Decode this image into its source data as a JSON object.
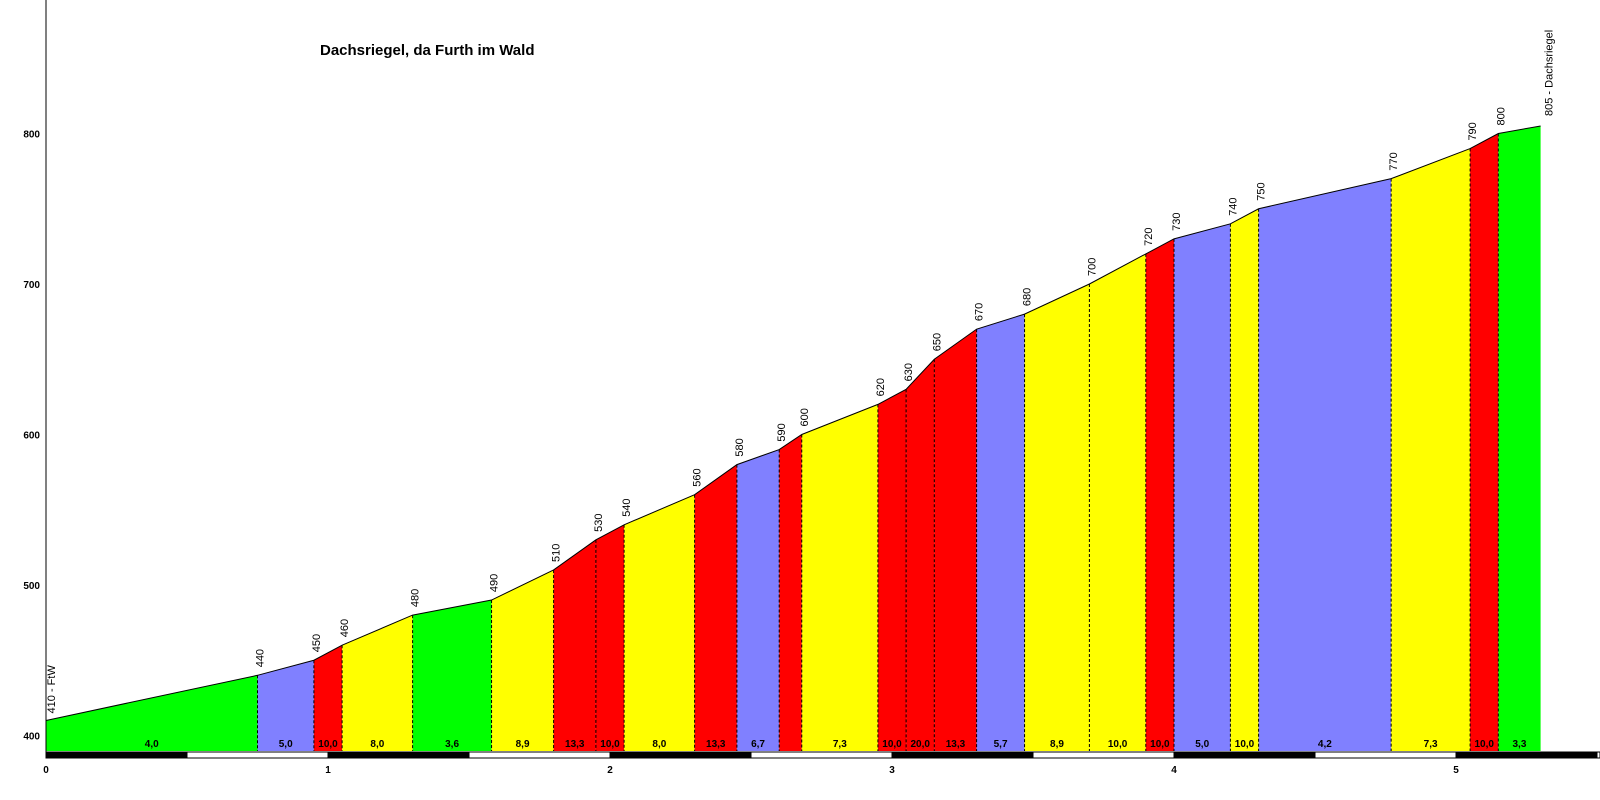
{
  "chart_data": {
    "type": "area",
    "title": "Dachsriegel, da Furth im Wald",
    "xlabel": "",
    "ylabel": "",
    "xlim": [
      0,
      5.67
    ],
    "ylim": [
      390,
      880
    ],
    "x_ticks": [
      "0",
      "1",
      "2",
      "3",
      "4",
      "5"
    ],
    "y_ticks": [
      "400",
      "500",
      "600",
      "700",
      "800"
    ],
    "start_label": "410 - FtW",
    "end_label": "805 - Dachsriegel",
    "points": [
      {
        "x": 0.0,
        "y": 410
      },
      {
        "x": 0.75,
        "y": 440,
        "label": "440"
      },
      {
        "x": 0.95,
        "y": 450,
        "label": "450"
      },
      {
        "x": 1.05,
        "y": 460,
        "label": "460"
      },
      {
        "x": 1.3,
        "y": 480,
        "label": "480"
      },
      {
        "x": 1.58,
        "y": 490,
        "label": "490"
      },
      {
        "x": 1.8,
        "y": 510,
        "label": "510"
      },
      {
        "x": 1.95,
        "y": 530,
        "label": "530"
      },
      {
        "x": 2.05,
        "y": 540,
        "label": "540"
      },
      {
        "x": 2.3,
        "y": 560,
        "label": "560"
      },
      {
        "x": 2.45,
        "y": 580,
        "label": "580"
      },
      {
        "x": 2.6,
        "y": 590,
        "label": "590"
      },
      {
        "x": 2.68,
        "y": 600,
        "label": "600"
      },
      {
        "x": 2.95,
        "y": 620,
        "label": "620"
      },
      {
        "x": 3.05,
        "y": 630,
        "label": "630"
      },
      {
        "x": 3.15,
        "y": 650,
        "label": "650"
      },
      {
        "x": 3.3,
        "y": 670,
        "label": "670"
      },
      {
        "x": 3.47,
        "y": 680,
        "label": "680"
      },
      {
        "x": 3.7,
        "y": 700,
        "label": "700"
      },
      {
        "x": 3.9,
        "y": 720,
        "label": "720"
      },
      {
        "x": 4.0,
        "y": 730,
        "label": "730"
      },
      {
        "x": 4.2,
        "y": 740,
        "label": "740"
      },
      {
        "x": 4.3,
        "y": 750,
        "label": "750"
      },
      {
        "x": 4.77,
        "y": 770,
        "label": "770"
      },
      {
        "x": 5.05,
        "y": 790,
        "label": "790"
      },
      {
        "x": 5.15,
        "y": 800,
        "label": "800"
      },
      {
        "x": 5.3,
        "y": 805
      }
    ],
    "segments": [
      {
        "grade": "4,0",
        "color": "#00ff00"
      },
      {
        "grade": "5,0",
        "color": "#8080ff"
      },
      {
        "grade": "10,0",
        "color": "#ff0000"
      },
      {
        "grade": "8,0",
        "color": "#ffff00"
      },
      {
        "grade": "3,6",
        "color": "#00ff00"
      },
      {
        "grade": "8,9",
        "color": "#ffff00"
      },
      {
        "grade": "13,3",
        "color": "#ff0000"
      },
      {
        "grade": "10,0",
        "color": "#ff0000"
      },
      {
        "grade": "8,0",
        "color": "#ffff00"
      },
      {
        "grade": "13,3",
        "color": "#ff0000"
      },
      {
        "grade": "6,7",
        "color": "#8080ff"
      },
      {
        "grade": "",
        "color": "#ff0000"
      },
      {
        "grade": "7,3",
        "color": "#ffff00"
      },
      {
        "grade": "10,0",
        "color": "#ff0000"
      },
      {
        "grade": "20,0",
        "color": "#ff0000"
      },
      {
        "grade": "13,3",
        "color": "#ff0000"
      },
      {
        "grade": "5,7",
        "color": "#8080ff"
      },
      {
        "grade": "8,9",
        "color": "#ffff00"
      },
      {
        "grade": "10,0",
        "color": "#ffff00"
      },
      {
        "grade": "10,0",
        "color": "#ff0000"
      },
      {
        "grade": "5,0",
        "color": "#8080ff"
      },
      {
        "grade": "10,0",
        "color": "#ffff00"
      },
      {
        "grade": "4,2",
        "color": "#8080ff"
      },
      {
        "grade": "7,3",
        "color": "#ffff00"
      },
      {
        "grade": "10,0",
        "color": "#ff0000"
      },
      {
        "grade": "3,3",
        "color": "#00ff00"
      }
    ]
  }
}
